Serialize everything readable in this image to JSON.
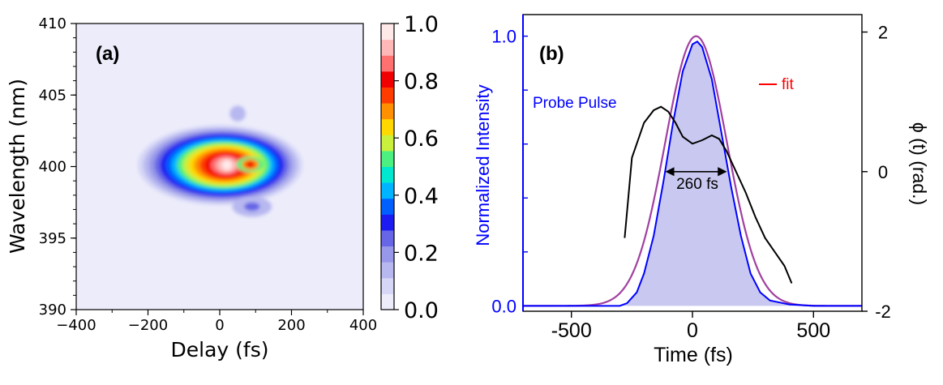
{
  "chart_data": [
    {
      "panel_label": "(a)",
      "type": "heatmap",
      "xlabel": "Delay (fs)",
      "ylabel": "Wavelength (nm)",
      "xlim": [
        -400,
        400
      ],
      "ylim": [
        390,
        410
      ],
      "xticks": [
        -400,
        -200,
        0,
        200,
        400
      ],
      "xtick_labels": [
        "−400",
        "−200",
        "0",
        "200",
        "400"
      ],
      "yticks": [
        390,
        395,
        400,
        405,
        410
      ],
      "colorbar": {
        "range": [
          0.0,
          1.0
        ],
        "ticks": [
          0.0,
          0.2,
          0.4,
          0.6,
          0.8,
          1.0
        ],
        "tick_labels": [
          "0.0",
          "0.2",
          "0.4",
          "0.6",
          "0.8",
          "1.0"
        ],
        "colors": [
          "#ececfb",
          "#d6d6f7",
          "#b8b8f0",
          "#9898ea",
          "#6666e6",
          "#1c1cf2",
          "#0060ff",
          "#00b4ff",
          "#00e8d0",
          "#4cf080",
          "#c8f03c",
          "#ffd800",
          "#ff9000",
          "#ff3c00",
          "#f00000",
          "#ff7070",
          "#ffb8b8",
          "#ffe8e8"
        ]
      },
      "peak": {
        "x": 20,
        "y": 400.1,
        "value": 1.0
      },
      "secondary_lobe": {
        "x": 90,
        "y": 397.2,
        "value": 0.08
      },
      "upper_lobe": {
        "x": 50,
        "y": 403.7,
        "value": 0.05
      }
    },
    {
      "panel_label": "(b)",
      "type": "line",
      "xlabel": "Time (fs)",
      "ylabel_left": "Normalized Intensity",
      "ylabel_right": "ϕ (t) (rad.)",
      "xlim": [
        -700,
        700
      ],
      "ylim_left": [
        -0.02,
        1.08
      ],
      "ylim_right": [
        -2.0,
        2.25
      ],
      "xticks": [
        -500,
        0,
        500
      ],
      "xtick_labels": [
        "-500",
        "0",
        "500"
      ],
      "yticks_left": [
        0.0,
        1.0
      ],
      "ytick_labels_left": [
        "0.0",
        "1.0"
      ],
      "yticks_right": [
        -2,
        0,
        2
      ],
      "ytick_labels_right": [
        "-2",
        "0",
        "2"
      ],
      "series": [
        {
          "name": "Probe Pulse",
          "color": "#0000ff",
          "kind": "filled-line",
          "x": [
            -700,
            -300,
            -270,
            -230,
            -200,
            -160,
            -120,
            -80,
            -40,
            0,
            20,
            40,
            80,
            120,
            160,
            200,
            240,
            280,
            320,
            400,
            500,
            700
          ],
          "y": [
            0.0,
            0.0,
            0.01,
            0.05,
            0.12,
            0.26,
            0.46,
            0.68,
            0.87,
            0.97,
            0.98,
            0.96,
            0.84,
            0.64,
            0.44,
            0.26,
            0.12,
            0.05,
            0.02,
            0.005,
            0.0,
            0.0
          ]
        },
        {
          "name": "fit",
          "color": "#ff0000",
          "kind": "gaussian",
          "center": 15,
          "fwhm": 300,
          "amplitude": 1.0
        },
        {
          "name": "phase",
          "color": "#000000",
          "kind": "line",
          "axis": "right",
          "x": [
            -280,
            -250,
            -200,
            -160,
            -130,
            -100,
            -70,
            -40,
            0,
            40,
            80,
            110,
            140,
            180,
            220,
            260,
            300,
            340,
            380,
            410
          ],
          "y": [
            -0.95,
            0.2,
            0.7,
            0.88,
            0.93,
            0.86,
            0.7,
            0.5,
            0.4,
            0.45,
            0.52,
            0.47,
            0.3,
            0.0,
            -0.3,
            -0.65,
            -0.95,
            -1.15,
            -1.35,
            -1.6
          ]
        }
      ],
      "annotations": {
        "width_label": "260 fs",
        "width_arrow": {
          "x_start": -115,
          "x_end": 145,
          "y_right": 0.0
        },
        "probe_label": "Probe Pulse",
        "legend_fit": "fit"
      },
      "colors": {
        "left_axis": "#0000ff",
        "fill": "#c8c8f0"
      }
    }
  ]
}
